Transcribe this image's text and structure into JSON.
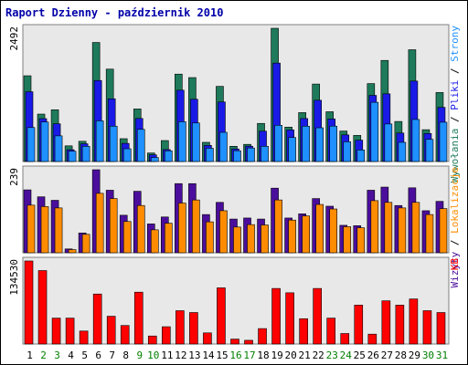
{
  "chart_data": {
    "type": "bar",
    "title": "Raport Dzienny -  październik 2010",
    "categories": [
      "1",
      "2",
      "3",
      "4",
      "5",
      "6",
      "7",
      "8",
      "9",
      "10",
      "11",
      "12",
      "13",
      "14",
      "15",
      "16",
      "17",
      "18",
      "19",
      "20",
      "21",
      "22",
      "23",
      "24",
      "25",
      "26",
      "27",
      "28",
      "29",
      "30",
      "31"
    ],
    "weekend_days": [
      "2",
      "3",
      "9",
      "10",
      "16",
      "17",
      "23",
      "24",
      "30",
      "31"
    ],
    "panels": [
      {
        "ymax_label": "2492",
        "ymax": 2492,
        "series": [
          {
            "name": "Wywołania",
            "color": "#1e7a5a",
            "values": [
              1604,
              887,
              968,
              293,
              378,
              2227,
              1728,
              427,
              983,
              159,
              392,
              1635,
              1570,
              359,
              1406,
              285,
              321,
              713,
              2492,
              643,
              915,
              1449,
              931,
              570,
              489,
              1458,
              1891,
              749,
              2091,
              595,
              1291
            ]
          },
          {
            "name": "Pliki",
            "color": "#1a1ae6",
            "values": [
              1305,
              802,
              706,
              221,
              332,
              1515,
              1173,
              339,
              805,
              126,
              223,
              1334,
              1165,
              302,
              1114,
              235,
              287,
              568,
              1841,
              592,
              804,
              1146,
              796,
              498,
              400,
              1237,
              1266,
              533,
              1505,
              524,
              1013
            ]
          },
          {
            "name": "Strony",
            "color": "#1e90ff",
            "values": [
              636,
              739,
              480,
              193,
              285,
              761,
              661,
              239,
              602,
              75,
              200,
              744,
              721,
              248,
              546,
              202,
              253,
              285,
              677,
              449,
              661,
              631,
              662,
              369,
              216,
              1107,
              702,
              359,
              786,
              415,
              735
            ]
          }
        ]
      },
      {
        "ymax_label": "239",
        "ymax": 239,
        "series": [
          {
            "name": "Wizyty",
            "color": "#4b0e9c",
            "values": [
              181,
              161,
              151,
              11,
              57,
              239,
              180,
              108,
              177,
              83,
              103,
              199,
              199,
              110,
              145,
              97,
              100,
              97,
              186,
              100,
              112,
              156,
              134,
              79,
              78,
              180,
              189,
              136,
              187,
              121,
              148
            ]
          },
          {
            "name": "Lokalizacje",
            "color": "#ff8c00",
            "values": [
              137,
              133,
              129,
              9,
              53,
              171,
              156,
              90,
              136,
              66,
              85,
              143,
              152,
              89,
              121,
              74,
              81,
              80,
              152,
              94,
              106,
              139,
              126,
              75,
              72,
              150,
              145,
              129,
              145,
              110,
              127
            ]
          }
        ]
      },
      {
        "ymax_label": "134530",
        "ymax": 134530,
        "series": [
          {
            "name": "KB",
            "color": "#ff0000",
            "values": [
              134530,
              119000,
              42000,
              42000,
              21000,
              81000,
              45000,
              30000,
              84000,
              13000,
              28000,
              54000,
              51000,
              18000,
              91000,
              8000,
              6000,
              25000,
              90000,
              83000,
              41000,
              90000,
              42000,
              17000,
              63000,
              16000,
              70000,
              63000,
              73000,
              54000,
              51000
            ]
          }
        ]
      }
    ],
    "right_legend_top": [
      "Wywołania",
      " / ",
      "Pliki",
      " / ",
      "Strony"
    ],
    "right_legend_mid": [
      "Wizyty",
      " / ",
      "Lokalizacje"
    ],
    "right_legend_bot": [
      "KB"
    ],
    "colors": {
      "title": "#0000aa",
      "weekday_label": "#000000",
      "weekend_label": "#008000",
      "panel_bg": "#e8e8e8",
      "frame": "#808080"
    }
  }
}
